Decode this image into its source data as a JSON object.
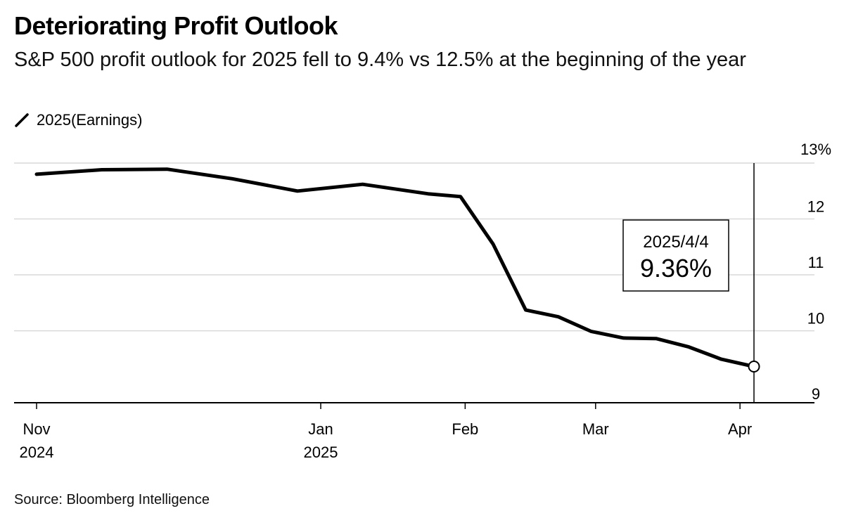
{
  "header": {
    "title": "Deteriorating Profit Outlook",
    "subtitle": "S&P 500 profit outlook for 2025 fell to 9.4% vs 12.5% at the beginning of the year"
  },
  "legend": {
    "label": "2025(Earnings)",
    "icon": "line-slash-icon"
  },
  "footer": {
    "source": "Source: Bloomberg Intelligence"
  },
  "callout": {
    "date": "2025/4/4",
    "value": "9.36%",
    "x": "2025-04-04",
    "y": 9.36
  },
  "colors": {
    "line": "#000000",
    "grid": "#d9d9d9",
    "axis": "#000000",
    "background": "#ffffff"
  },
  "chart_data": {
    "type": "line",
    "title": "Deteriorating Profit Outlook",
    "subtitle": "S&P 500 profit outlook for 2025 fell to 9.4% vs 12.5% at the beginning of the year",
    "xlabel": "",
    "ylabel": "",
    "ylim": [
      8.8,
      13
    ],
    "xlim": [
      "2024-10-28",
      "2025-04-18"
    ],
    "grid": "horizontal",
    "legend_position": "top-left",
    "y_axis_side": "right",
    "y_ticks": [
      {
        "value": 13,
        "label": "13%"
      },
      {
        "value": 12,
        "label": "12"
      },
      {
        "value": 11,
        "label": "11"
      },
      {
        "value": 10,
        "label": "10"
      },
      {
        "value": 9,
        "label": "9"
      }
    ],
    "x_ticks": [
      {
        "date": "2024-11-01",
        "line1": "Nov",
        "line2": "2024"
      },
      {
        "date": "2025-01-01",
        "line1": "Jan",
        "line2": "2025"
      },
      {
        "date": "2025-02-01",
        "line1": "Feb",
        "line2": ""
      },
      {
        "date": "2025-03-01",
        "line1": "Mar",
        "line2": ""
      },
      {
        "date": "2025-04-01",
        "line1": "Apr",
        "line2": ""
      }
    ],
    "series": [
      {
        "name": "2025(Earnings)",
        "x": [
          "2024-11-01",
          "2024-11-15",
          "2024-11-29",
          "2024-12-13",
          "2024-12-27",
          "2025-01-10",
          "2025-01-24",
          "2025-01-31",
          "2025-02-07",
          "2025-02-14",
          "2025-02-21",
          "2025-02-28",
          "2025-03-07",
          "2025-03-14",
          "2025-03-21",
          "2025-03-28",
          "2025-04-04"
        ],
        "y": [
          12.8,
          12.88,
          12.89,
          12.72,
          12.5,
          12.62,
          12.45,
          12.4,
          11.55,
          10.37,
          10.25,
          9.99,
          9.87,
          9.86,
          9.71,
          9.49,
          9.36
        ]
      }
    ]
  }
}
